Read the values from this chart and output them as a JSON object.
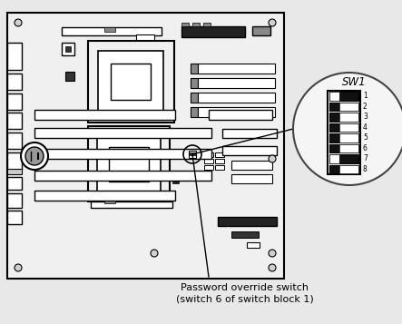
{
  "caption_line1": "Password override switch",
  "caption_line2": "(switch 6 of switch block 1)",
  "sw1_label": "SW1",
  "switch_labels": [
    "1",
    "2",
    "3",
    "4",
    "5",
    "6",
    "7",
    "8"
  ],
  "switch_left_dark": [
    false,
    true,
    true,
    true,
    true,
    true,
    false,
    true
  ],
  "switch_right_dark": [
    true,
    false,
    false,
    false,
    false,
    false,
    true,
    false
  ]
}
